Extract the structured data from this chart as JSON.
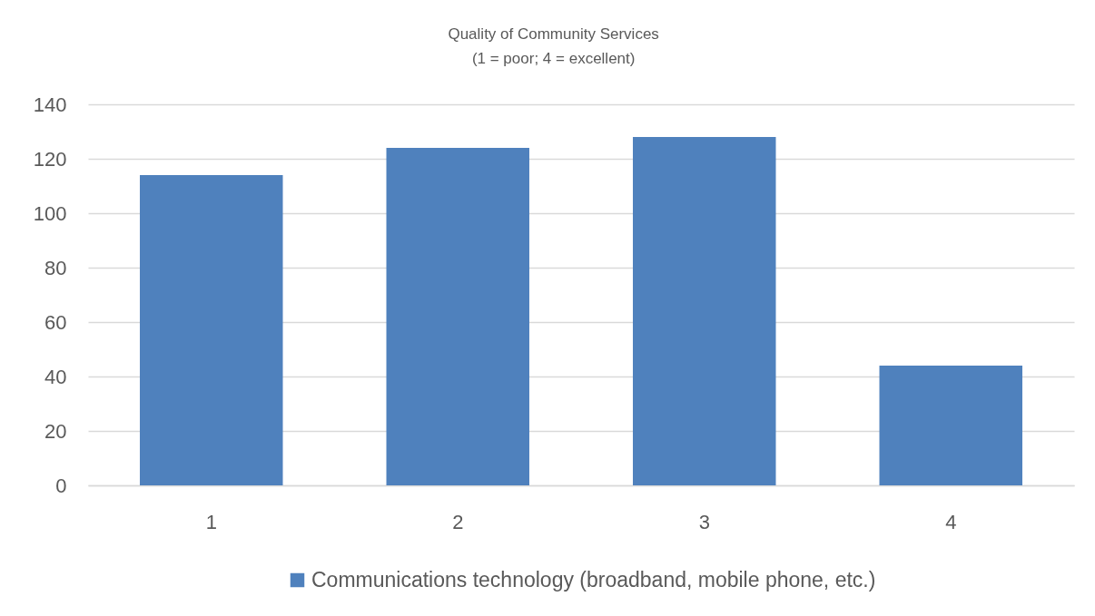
{
  "chart_data": {
    "type": "bar",
    "title": "Quality of Community Services",
    "subtitle": "(1 = poor; 4 = excellent)",
    "categories": [
      "1",
      "2",
      "3",
      "4"
    ],
    "series": [
      {
        "name": "Communications technology (broadband, mobile phone, etc.)",
        "color": "#4f81bd",
        "values": [
          114,
          124,
          128,
          44
        ]
      }
    ],
    "ylim": [
      0,
      140
    ],
    "yticks": [
      0,
      20,
      40,
      60,
      80,
      100,
      120,
      140
    ],
    "grid": "y",
    "legend": "bottom"
  }
}
